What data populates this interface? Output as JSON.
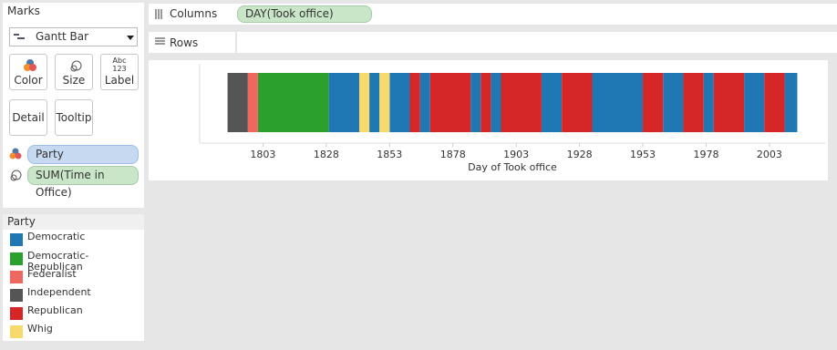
{
  "marks": {
    "title": "Marks",
    "mark_type": "Gantt Bar",
    "buttons": [
      "Color",
      "Size",
      "Label",
      "Detail",
      "Tooltip"
    ],
    "label_icon": [
      "Abc",
      "123"
    ],
    "fields": [
      "Party",
      "SUM(Time in Office)"
    ]
  },
  "shelves": {
    "columns": {
      "label": "Columns",
      "pill": "DAY(Took office)"
    },
    "rows": {
      "label": "Rows"
    }
  },
  "legend": {
    "title": "Party"
  },
  "chart_data": {
    "type": "gantt",
    "x_label": "Day of Took office",
    "xlim": [
      1778,
      2025
    ],
    "xticks": [
      1803,
      1828,
      1853,
      1878,
      1903,
      1928,
      1953,
      1978,
      2003
    ],
    "series": [
      {
        "name": "Democratic",
        "color": "#1f77b4",
        "x": [
          1829,
          1845,
          1853,
          1865,
          1885,
          1893,
          1913,
          1933,
          1961,
          1977,
          1993,
          2009
        ],
        "values": [
          12,
          4,
          8,
          4,
          4,
          4,
          8,
          20,
          8,
          4,
          8,
          5
        ]
      },
      {
        "name": "Democratic-Republican",
        "color": "#2ca02c",
        "x": [
          1801
        ],
        "values": [
          28
        ]
      },
      {
        "name": "Federalist",
        "color": "#f0675f",
        "x": [
          1797
        ],
        "values": [
          4
        ]
      },
      {
        "name": "Independent",
        "color": "#555555",
        "x": [
          1789
        ],
        "values": [
          8
        ]
      },
      {
        "name": "Republican",
        "color": "#d62728",
        "x": [
          1861,
          1869,
          1889,
          1897,
          1921,
          1953,
          1969,
          1981,
          2001
        ],
        "values": [
          4,
          16,
          4,
          16,
          12,
          8,
          8,
          12,
          8
        ]
      },
      {
        "name": "Whig",
        "color": "#f8d96c",
        "x": [
          1841,
          1849
        ],
        "values": [
          4,
          4
        ]
      }
    ]
  }
}
